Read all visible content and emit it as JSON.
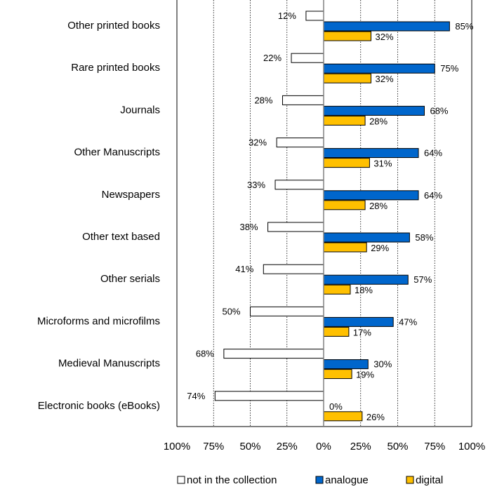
{
  "chart_data": {
    "type": "bar",
    "orientation": "horizontal",
    "diverging": true,
    "categories": [
      "Other printed books",
      "Rare printed books",
      "Journals",
      "Other Manuscripts",
      "Newspapers",
      "Other text based",
      "Other serials",
      "Microforms and microfilms",
      "Medieval Manuscripts",
      "Electronic books (eBooks)"
    ],
    "series": [
      {
        "name": "not in the collection",
        "color": "#ffffff",
        "direction": "left",
        "values": [
          12,
          22,
          28,
          32,
          33,
          38,
          41,
          50,
          68,
          74
        ],
        "labels": [
          "12%",
          "22%",
          "28%",
          "32%",
          "33%",
          "38%",
          "41%",
          "50%",
          "68%",
          "74%"
        ]
      },
      {
        "name": "analogue",
        "color": "#0066cc",
        "direction": "right",
        "values": [
          85,
          75,
          68,
          64,
          64,
          58,
          57,
          47,
          30,
          0
        ],
        "labels": [
          "85%",
          "75%",
          "68%",
          "64%",
          "64%",
          "58%",
          "57%",
          "47%",
          "30%",
          "0%"
        ]
      },
      {
        "name": "digital",
        "color": "#ffc000",
        "direction": "right",
        "values": [
          32,
          32,
          28,
          31,
          28,
          29,
          18,
          17,
          19,
          26
        ],
        "labels": [
          "32%",
          "32%",
          "28%",
          "31%",
          "28%",
          "29%",
          "18%",
          "17%",
          "19%",
          "26%"
        ]
      }
    ],
    "xlim": [
      -100,
      100
    ],
    "x_ticks": [
      {
        "value": -100,
        "label": "100%"
      },
      {
        "value": -75,
        "label": "75%"
      },
      {
        "value": -50,
        "label": "50%"
      },
      {
        "value": -25,
        "label": "25%"
      },
      {
        "value": 0,
        "label": "0%"
      },
      {
        "value": 25,
        "label": "25%"
      },
      {
        "value": 50,
        "label": "50%"
      },
      {
        "value": 75,
        "label": "75%"
      },
      {
        "value": 100,
        "label": "100%"
      }
    ],
    "grid": "vertical-dotted",
    "legend_position": "bottom"
  }
}
